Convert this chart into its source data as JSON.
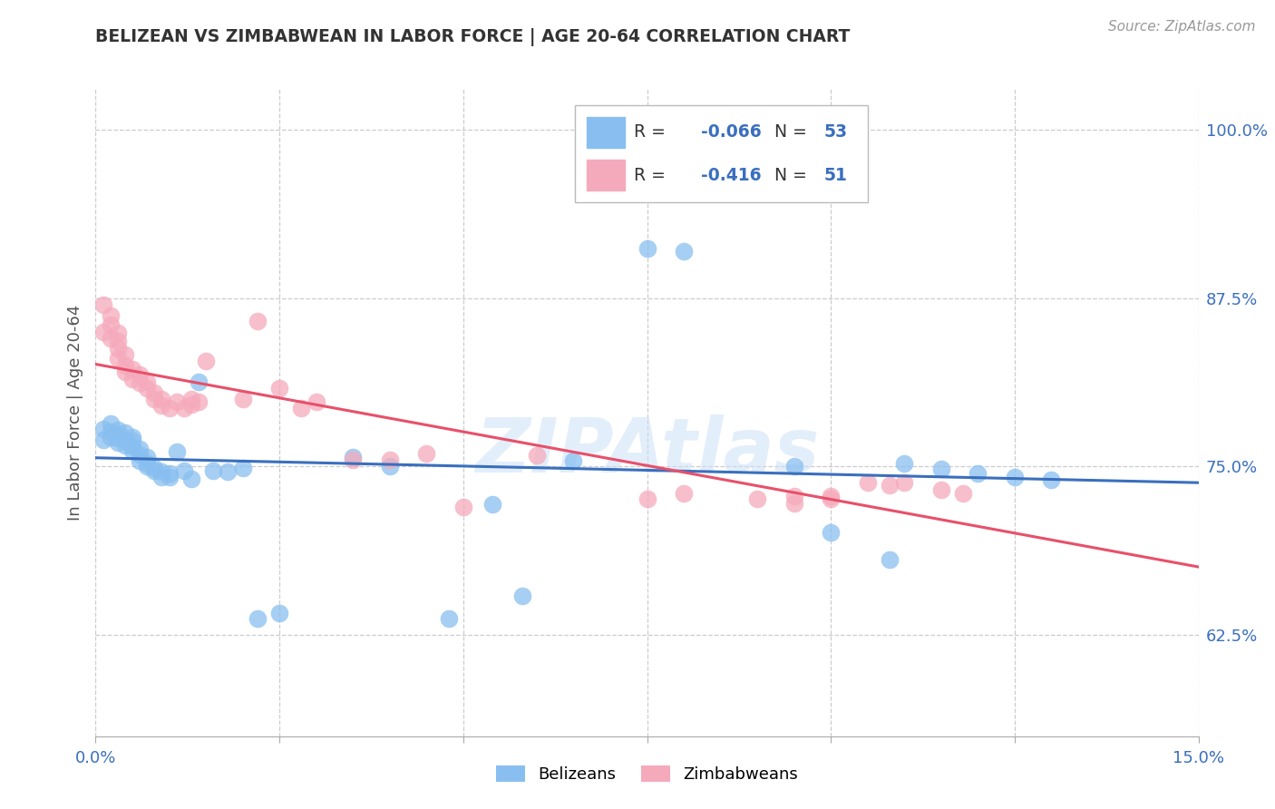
{
  "title": "BELIZEAN VS ZIMBABWEAN IN LABOR FORCE | AGE 20-64 CORRELATION CHART",
  "source": "Source: ZipAtlas.com",
  "ylabel": "In Labor Force | Age 20-64",
  "xlim": [
    0.0,
    0.15
  ],
  "ylim": [
    0.55,
    1.03
  ],
  "xtick_positions": [
    0.0,
    0.025,
    0.05,
    0.075,
    0.1,
    0.125,
    0.15
  ],
  "xticklabels": [
    "0.0%",
    "",
    "",
    "",
    "",
    "",
    "15.0%"
  ],
  "yticks_right": [
    0.625,
    0.75,
    0.875,
    1.0
  ],
  "ytick_right_labels": [
    "62.5%",
    "75.0%",
    "87.5%",
    "100.0%"
  ],
  "legend_r_belize": "-0.066",
  "legend_n_belize": "53",
  "legend_r_zimb": "-0.416",
  "legend_n_zimb": "51",
  "watermark": "ZIPAtlas",
  "blue_color": "#89bff0",
  "pink_color": "#f5aabb",
  "blue_line_color": "#3a6fbe",
  "pink_line_color": "#e8506a",
  "belize_x": [
    0.001,
    0.001,
    0.002,
    0.002,
    0.002,
    0.003,
    0.003,
    0.003,
    0.003,
    0.004,
    0.004,
    0.004,
    0.005,
    0.005,
    0.005,
    0.005,
    0.006,
    0.006,
    0.006,
    0.007,
    0.007,
    0.007,
    0.008,
    0.008,
    0.009,
    0.009,
    0.01,
    0.01,
    0.011,
    0.012,
    0.013,
    0.014,
    0.016,
    0.018,
    0.02,
    0.022,
    0.025,
    0.035,
    0.04,
    0.048,
    0.054,
    0.058,
    0.065,
    0.075,
    0.08,
    0.095,
    0.1,
    0.108,
    0.11,
    0.115,
    0.12,
    0.125,
    0.13
  ],
  "belize_y": [
    0.77,
    0.778,
    0.772,
    0.776,
    0.782,
    0.768,
    0.771,
    0.774,
    0.777,
    0.766,
    0.77,
    0.775,
    0.762,
    0.765,
    0.769,
    0.772,
    0.754,
    0.759,
    0.763,
    0.75,
    0.752,
    0.757,
    0.747,
    0.749,
    0.742,
    0.746,
    0.742,
    0.745,
    0.761,
    0.747,
    0.741,
    0.813,
    0.747,
    0.746,
    0.749,
    0.637,
    0.641,
    0.757,
    0.75,
    0.637,
    0.722,
    0.654,
    0.754,
    0.912,
    0.91,
    0.75,
    0.701,
    0.681,
    0.752,
    0.748,
    0.745,
    0.742,
    0.74
  ],
  "zimb_x": [
    0.001,
    0.001,
    0.002,
    0.002,
    0.002,
    0.003,
    0.003,
    0.003,
    0.003,
    0.004,
    0.004,
    0.004,
    0.005,
    0.005,
    0.006,
    0.006,
    0.007,
    0.007,
    0.008,
    0.008,
    0.009,
    0.009,
    0.01,
    0.011,
    0.012,
    0.013,
    0.013,
    0.014,
    0.015,
    0.02,
    0.022,
    0.025,
    0.028,
    0.03,
    0.035,
    0.04,
    0.045,
    0.05,
    0.06,
    0.075,
    0.08,
    0.09,
    0.095,
    0.095,
    0.1,
    0.1,
    0.105,
    0.108,
    0.11,
    0.115,
    0.118
  ],
  "zimb_y": [
    0.85,
    0.87,
    0.845,
    0.855,
    0.862,
    0.83,
    0.838,
    0.843,
    0.849,
    0.82,
    0.825,
    0.833,
    0.815,
    0.822,
    0.812,
    0.818,
    0.808,
    0.813,
    0.8,
    0.805,
    0.795,
    0.8,
    0.793,
    0.798,
    0.793,
    0.796,
    0.8,
    0.798,
    0.828,
    0.8,
    0.858,
    0.808,
    0.793,
    0.798,
    0.755,
    0.755,
    0.76,
    0.72,
    0.758,
    0.726,
    0.73,
    0.726,
    0.723,
    0.728,
    0.726,
    0.728,
    0.738,
    0.736,
    0.738,
    0.733,
    0.73
  ]
}
